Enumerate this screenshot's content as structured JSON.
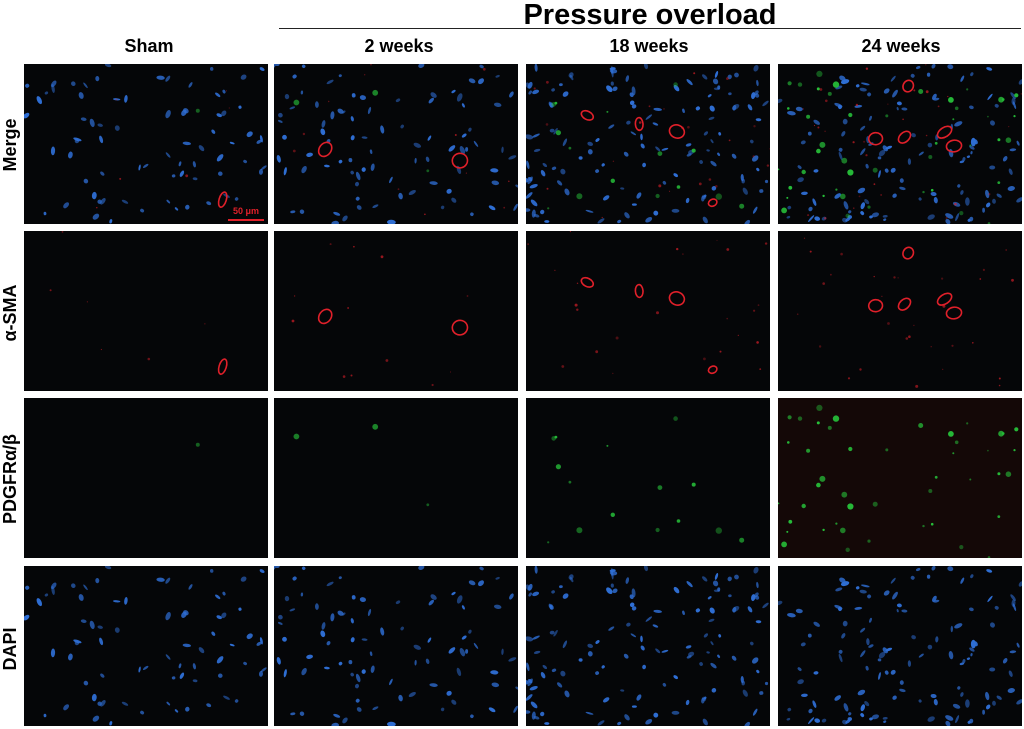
{
  "figure": {
    "group_header": "Pressure overload",
    "columns": [
      "Sham",
      "2 weeks",
      "18 weeks",
      "24 weeks"
    ],
    "rows": [
      "Merge",
      "α-SMA",
      "PDGFRα/β",
      "DAPI"
    ],
    "scale_bar_label": "50 μm",
    "colors": {
      "background": "#050608",
      "nuclei_dapi": "#2f6fd6",
      "alpha_sma": "#e0202a",
      "pdgfr": "#27c23a"
    },
    "nuclei_density": [
      0.35,
      0.45,
      0.75,
      0.7
    ],
    "sma_rings": [
      1,
      2,
      4,
      5
    ],
    "pdgfr_density": [
      0.02,
      0.05,
      0.25,
      0.75
    ]
  }
}
